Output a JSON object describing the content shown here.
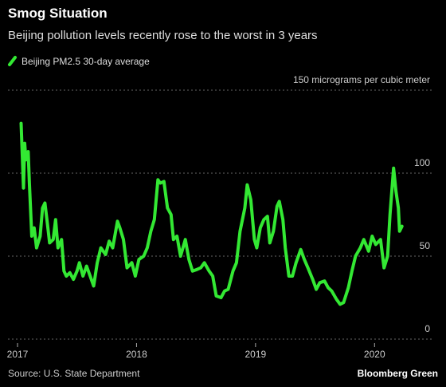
{
  "chart_data": {
    "type": "line",
    "title": "Smog Situation",
    "subtitle": "Beijing pollution levels recently rose to the worst in 3 years",
    "source": "Source: U.S. State Department",
    "credit": "Bloomberg Green",
    "x": [
      2017.03,
      2017.05,
      2017.06,
      2017.07,
      2017.09,
      2017.1,
      2017.12,
      2017.14,
      2017.16,
      2017.19,
      2017.21,
      2017.23,
      2017.25,
      2017.27,
      2017.3,
      2017.32,
      2017.34,
      2017.37,
      2017.39,
      2017.41,
      2017.44,
      2017.47,
      2017.5,
      2017.52,
      2017.55,
      2017.58,
      2017.61,
      2017.64,
      2017.67,
      2017.7,
      2017.74,
      2017.77,
      2017.8,
      2017.84,
      2017.86,
      2017.89,
      2017.92,
      2017.96,
      2017.99,
      2018.02,
      2018.06,
      2018.09,
      2018.12,
      2018.15,
      2018.18,
      2018.2,
      2018.23,
      2018.26,
      2018.29,
      2018.31,
      2018.34,
      2018.37,
      2018.41,
      2018.44,
      2018.47,
      2018.51,
      2018.54,
      2018.57,
      2018.61,
      2018.64,
      2018.67,
      2018.71,
      2018.74,
      2018.77,
      2018.81,
      2018.84,
      2018.87,
      2018.91,
      2018.93,
      2018.96,
      2018.99,
      2019.01,
      2019.04,
      2019.07,
      2019.1,
      2019.12,
      2019.15,
      2019.18,
      2019.2,
      2019.23,
      2019.25,
      2019.28,
      2019.31,
      2019.34,
      2019.38,
      2019.41,
      2019.44,
      2019.48,
      2019.51,
      2019.54,
      2019.58,
      2019.61,
      2019.64,
      2019.68,
      2019.71,
      2019.74,
      2019.78,
      2019.81,
      2019.84,
      2019.88,
      2019.91,
      2019.95,
      2019.98,
      2020.01,
      2020.05,
      2020.08,
      2020.11,
      2020.13,
      2020.16,
      2020.18,
      2020.2,
      2020.21,
      2020.23
    ],
    "series": [
      {
        "name": "Beijing PM2.5 30-day average",
        "color": "#33e833",
        "values": [
          130,
          91,
          118,
          108,
          113,
          94,
          62,
          67,
          55,
          62,
          79,
          82,
          70,
          58,
          60,
          72,
          55,
          60,
          41,
          38,
          40,
          36,
          41,
          46,
          38,
          44,
          38,
          32,
          46,
          55,
          51,
          59,
          55,
          71,
          67,
          60,
          43,
          46,
          38,
          48,
          50,
          55,
          65,
          72,
          96,
          94,
          95,
          79,
          75,
          60,
          62,
          50,
          60,
          48,
          41,
          42,
          43,
          46,
          41,
          38,
          26,
          25,
          29,
          30,
          41,
          46,
          65,
          79,
          93,
          84,
          60,
          55,
          67,
          72,
          74,
          58,
          65,
          80,
          83,
          72,
          55,
          38,
          38,
          46,
          54,
          48,
          43,
          36,
          30,
          34,
          35,
          31,
          29,
          24,
          21,
          22,
          31,
          41,
          50,
          55,
          60,
          53,
          62,
          57,
          60,
          43,
          50,
          75,
          103,
          89,
          79,
          65,
          68
        ]
      }
    ],
    "xlim": [
      2017,
      2020.5
    ],
    "xticks": [
      2017,
      2018,
      2019,
      2020
    ],
    "ylim": [
      0,
      150
    ],
    "yticks": [
      0,
      50,
      100,
      {
        "value": 150,
        "label": "150 micrograms per cubic meter"
      }
    ],
    "grid": true
  }
}
